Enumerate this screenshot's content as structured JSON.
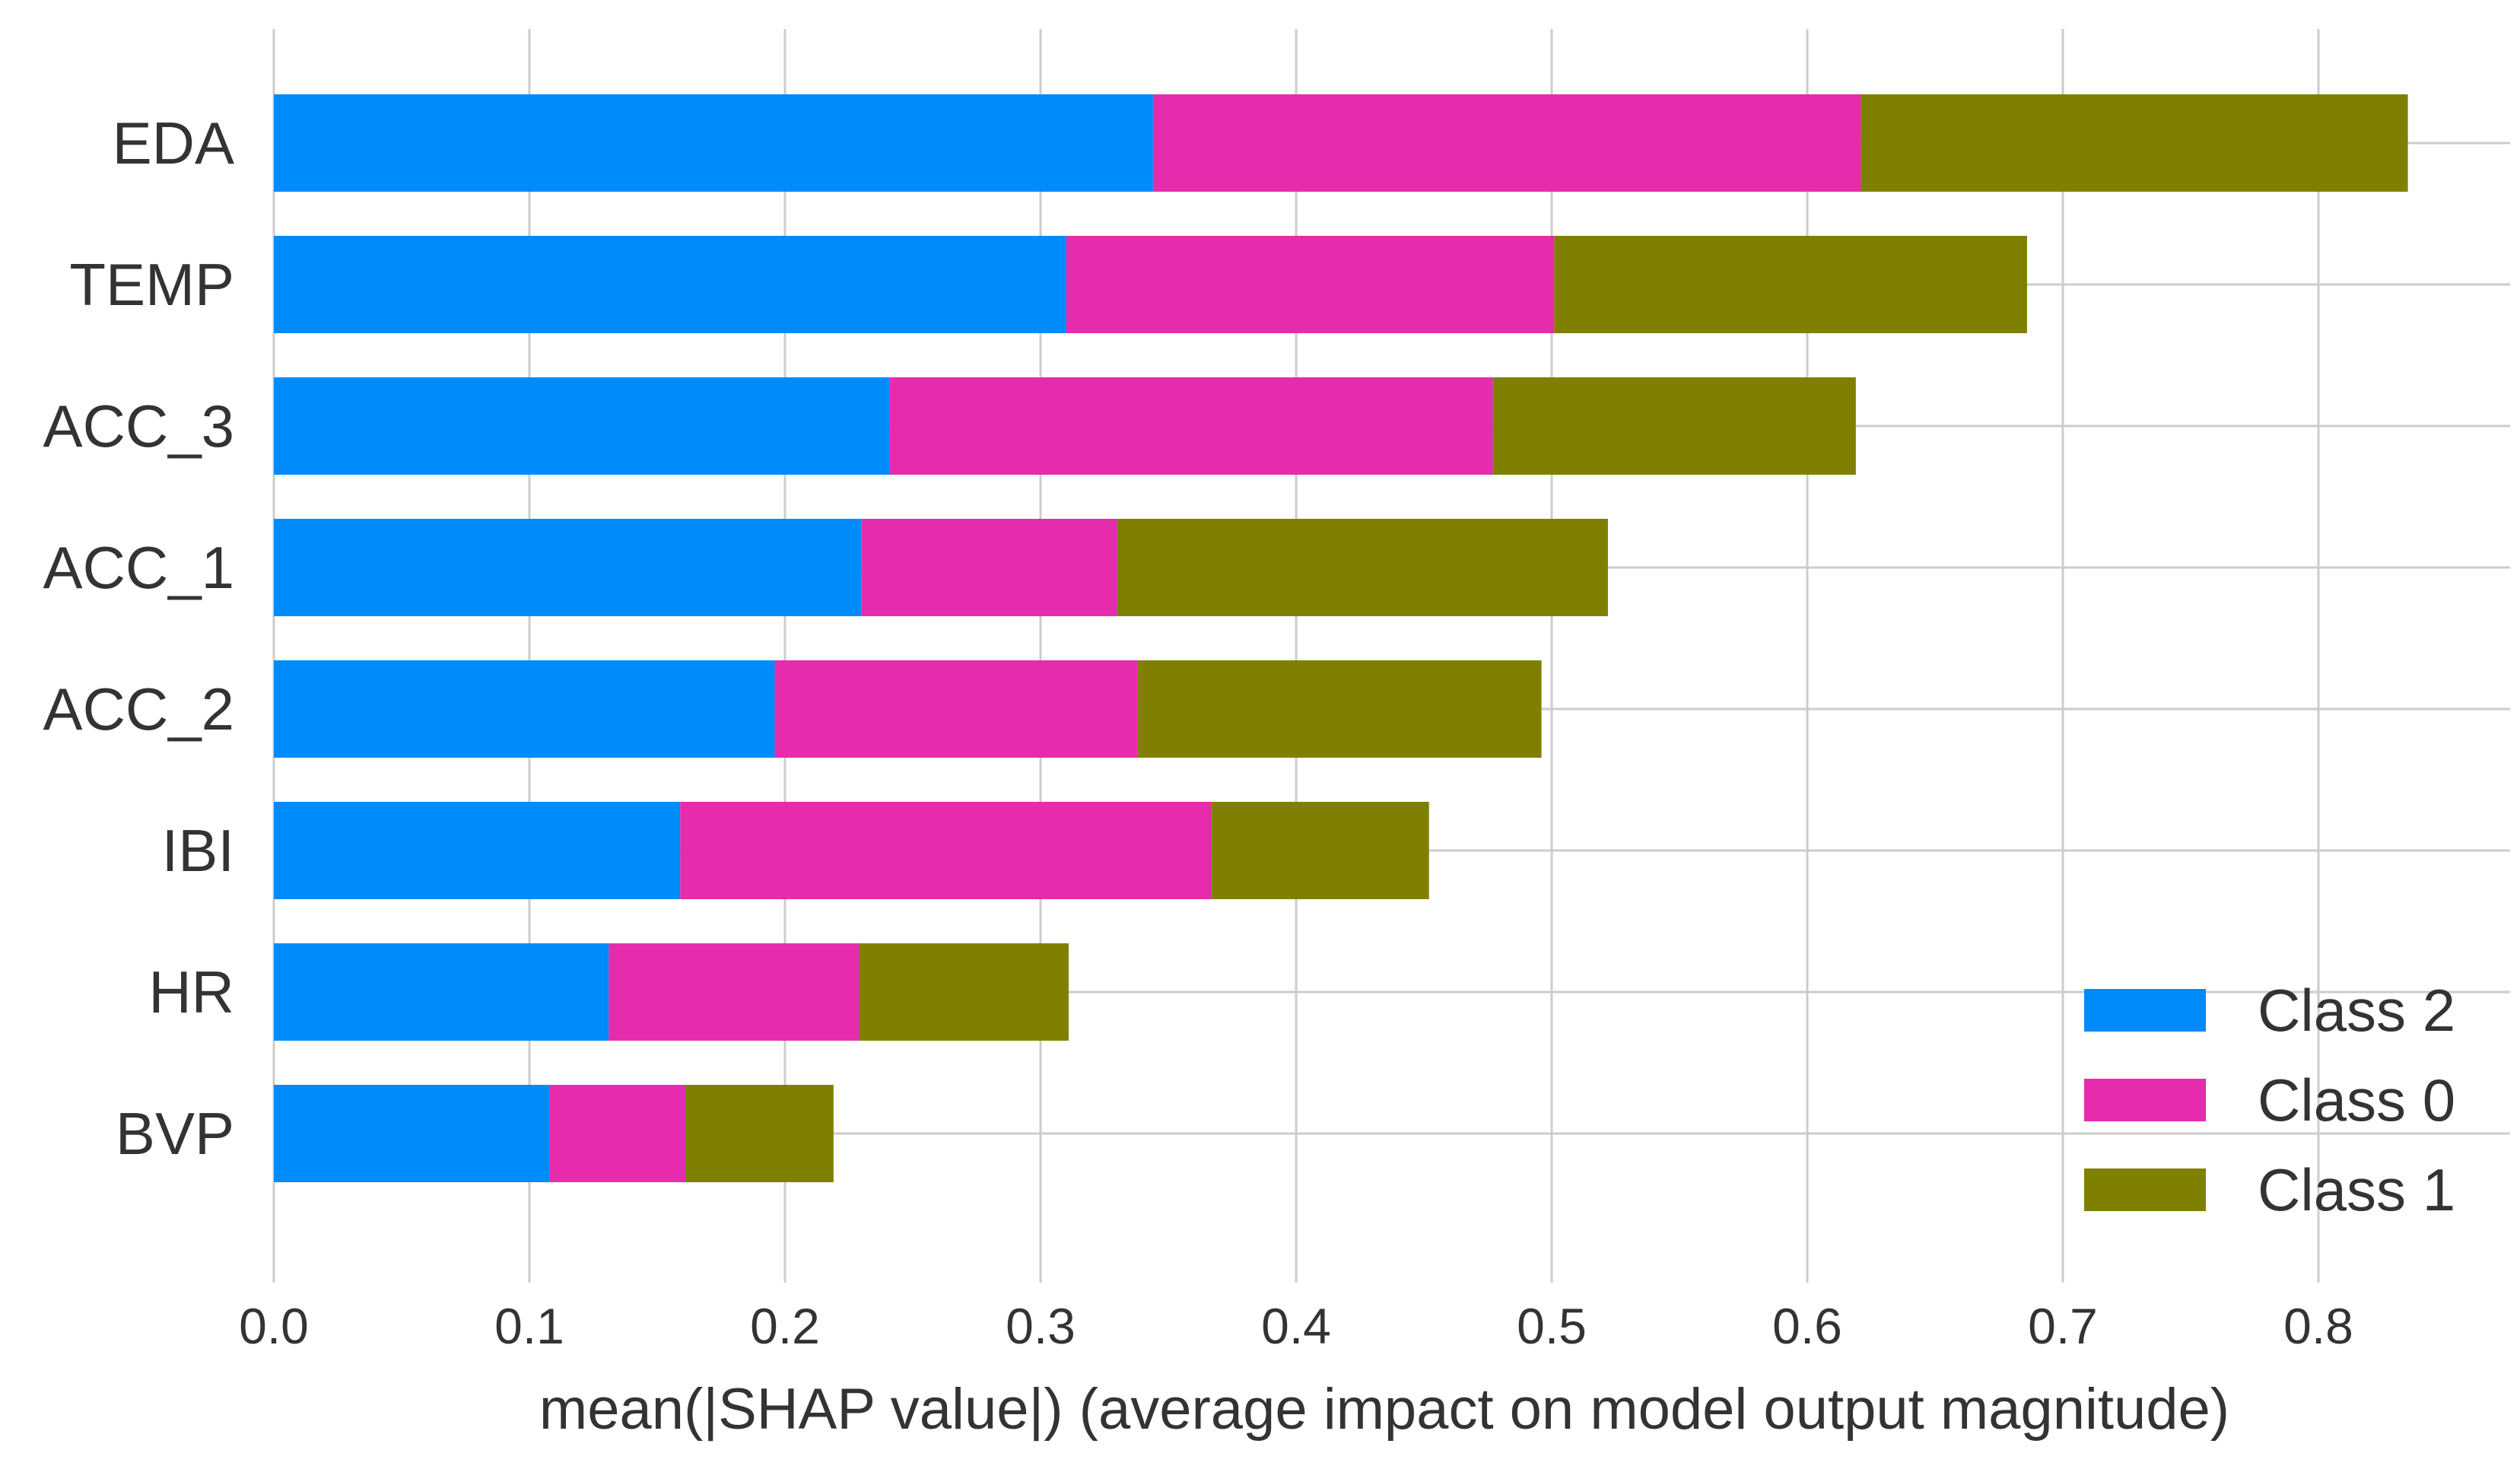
{
  "chart_data": {
    "type": "bar",
    "orientation": "horizontal",
    "stacked": true,
    "title": "",
    "xlabel": "mean(|SHAP value|) (average impact on model output magnitude)",
    "ylabel": "",
    "categories": [
      "EDA",
      "TEMP",
      "ACC_3",
      "ACC_1",
      "ACC_2",
      "IBI",
      "HR",
      "BVP"
    ],
    "series": [
      {
        "name": "Class 2",
        "color": "#008bfb",
        "values": [
          0.344,
          0.31,
          0.241,
          0.23,
          0.196,
          0.159,
          0.131,
          0.108
        ]
      },
      {
        "name": "Class 0",
        "color": "#e62bac",
        "values": [
          0.277,
          0.191,
          0.236,
          0.1,
          0.142,
          0.208,
          0.098,
          0.053
        ]
      },
      {
        "name": "Class 1",
        "color": "#808000",
        "values": [
          0.214,
          0.185,
          0.142,
          0.192,
          0.158,
          0.085,
          0.082,
          0.058
        ]
      }
    ],
    "xlim": [
      0.0,
      0.875
    ],
    "xticks": [
      0.0,
      0.1,
      0.2,
      0.3,
      0.4,
      0.5,
      0.6,
      0.7,
      0.8
    ],
    "xtick_labels": [
      "0.0",
      "0.1",
      "0.2",
      "0.3",
      "0.4",
      "0.5",
      "0.6",
      "0.7",
      "0.8"
    ],
    "grid": true,
    "legend": {
      "placement": "lower-right",
      "order": [
        "Class 2",
        "Class 0",
        "Class 1"
      ]
    }
  }
}
